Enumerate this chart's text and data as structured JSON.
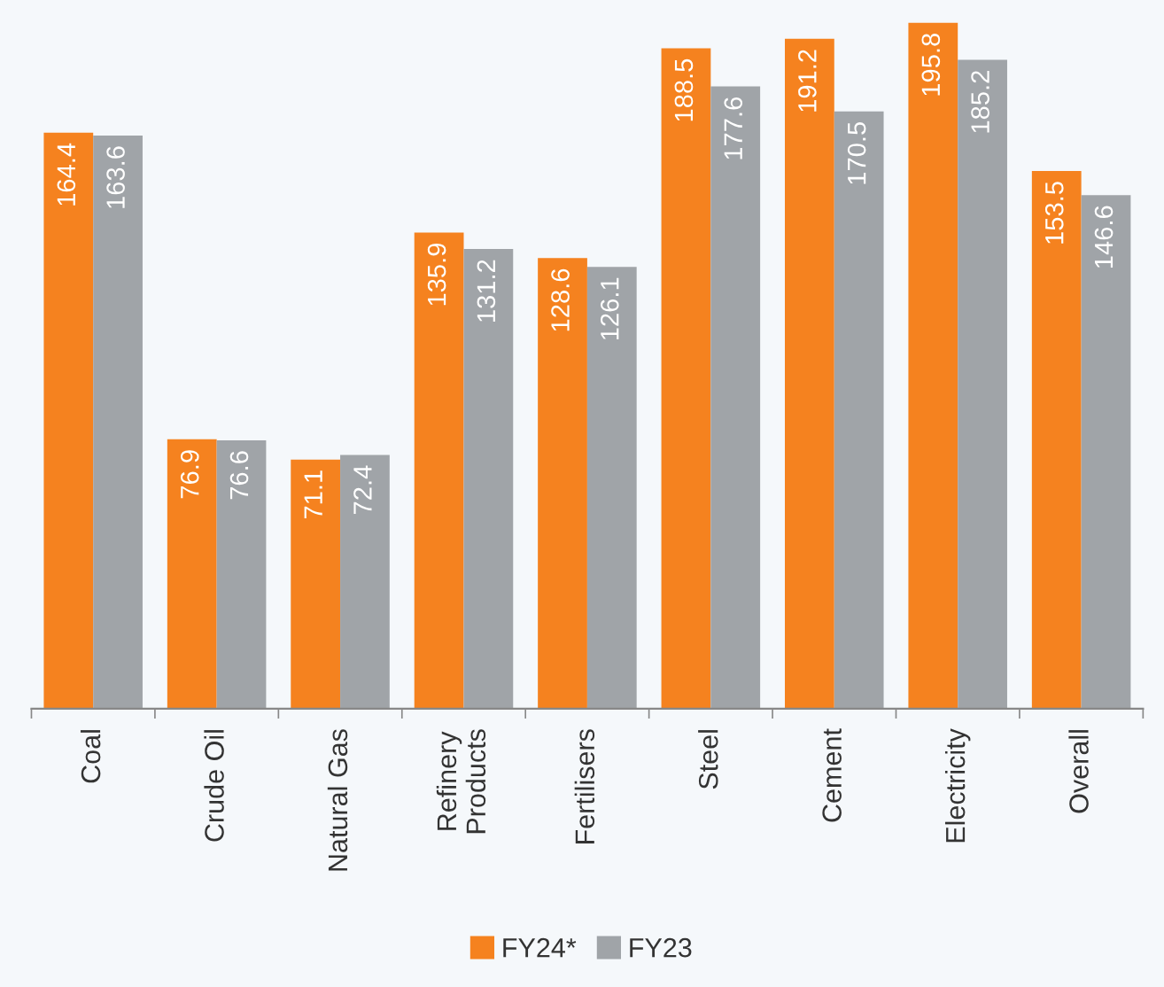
{
  "chart_data": {
    "type": "bar",
    "categories": [
      "Coal",
      "Crude Oil",
      "Natural Gas",
      "Refinery\nProducts",
      "Fertilisers",
      "Steel",
      "Cement",
      "Electricity",
      "Overall"
    ],
    "series": [
      {
        "name": "FY24*",
        "color": "#f5821f",
        "values": [
          164.4,
          76.9,
          71.1,
          135.9,
          128.6,
          188.5,
          191.2,
          195.8,
          153.5
        ]
      },
      {
        "name": "FY23",
        "color": "#a0a4a8",
        "values": [
          163.6,
          76.6,
          72.4,
          131.2,
          126.1,
          177.6,
          170.5,
          185.2,
          146.6
        ]
      }
    ],
    "data_labels": true,
    "legend": "bottom",
    "grid": false
  }
}
